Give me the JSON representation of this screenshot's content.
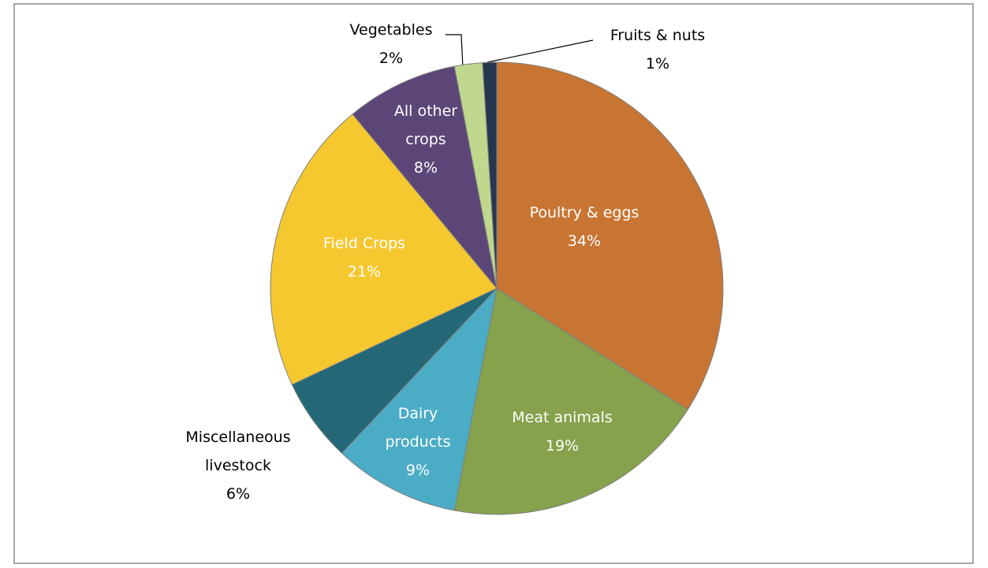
{
  "chart_data": {
    "type": "pie",
    "categories": [
      "Poultry & eggs",
      "Meat animals",
      "Dairy products",
      "Miscellaneous livestock",
      "Field Crops",
      "All other crops",
      "Vegetables",
      "Fruits & nuts"
    ],
    "values": [
      34,
      19,
      9,
      6,
      21,
      8,
      2,
      1
    ],
    "value_labels": [
      "34%",
      "19%",
      "9%",
      "6%",
      "21%",
      "8%",
      "2%",
      "1%"
    ],
    "colors": [
      "#c87533",
      "#86a24c",
      "#4bacc6",
      "#246877",
      "#f6c830",
      "#5c4677",
      "#bfd88e",
      "#27364f"
    ]
  }
}
